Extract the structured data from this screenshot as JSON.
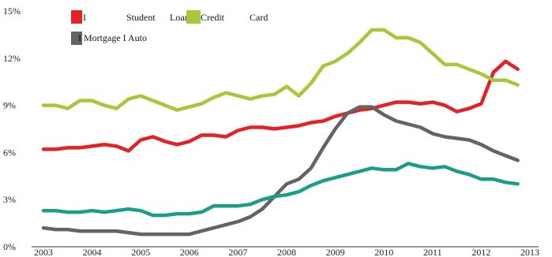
{
  "chart_data": {
    "type": "line",
    "title": "",
    "xlabel": "",
    "ylabel": "",
    "x_ticks": [
      "2003",
      "2004",
      "2005",
      "2006",
      "2007",
      "2008",
      "2009",
      "2010",
      "2011",
      "2012",
      "2013"
    ],
    "y_ticks": [
      "0%",
      "3%",
      "6%",
      "9%",
      "12%",
      "15%"
    ],
    "xlim": [
      2003,
      2013
    ],
    "ylim": [
      0,
      15
    ],
    "grid": false,
    "legend_placement": "top-left",
    "legend": {
      "row1": [
        {
          "marker": "I",
          "text": "Student",
          "color": "#e32228"
        },
        {
          "text": "Loan"
        },
        {
          "text": "Credit",
          "color": "#a7c83a"
        },
        {
          "text": "Card"
        }
      ],
      "row2": {
        "text": "I Mortgage I Auto",
        "color": "#646466"
      }
    },
    "series": [
      {
        "key": "student-loan",
        "color": "#e32228",
        "points": [
          [
            2003.0,
            6.2
          ],
          [
            2003.25,
            6.2
          ],
          [
            2003.5,
            6.3
          ],
          [
            2003.75,
            6.3
          ],
          [
            2004.0,
            6.4
          ],
          [
            2004.25,
            6.5
          ],
          [
            2004.5,
            6.4
          ],
          [
            2004.75,
            6.1
          ],
          [
            2005.0,
            6.8
          ],
          [
            2005.25,
            7.0
          ],
          [
            2005.5,
            6.7
          ],
          [
            2005.75,
            6.5
          ],
          [
            2006.0,
            6.7
          ],
          [
            2006.25,
            7.1
          ],
          [
            2006.5,
            7.1
          ],
          [
            2006.75,
            7.0
          ],
          [
            2007.0,
            7.4
          ],
          [
            2007.25,
            7.6
          ],
          [
            2007.5,
            7.6
          ],
          [
            2007.75,
            7.5
          ],
          [
            2008.0,
            7.6
          ],
          [
            2008.25,
            7.7
          ],
          [
            2008.5,
            7.9
          ],
          [
            2008.75,
            8.0
          ],
          [
            2009.0,
            8.3
          ],
          [
            2009.25,
            8.5
          ],
          [
            2009.5,
            8.7
          ],
          [
            2009.75,
            8.8
          ],
          [
            2010.0,
            9.0
          ],
          [
            2010.25,
            9.2
          ],
          [
            2010.5,
            9.2
          ],
          [
            2010.75,
            9.1
          ],
          [
            2011.0,
            9.2
          ],
          [
            2011.25,
            9.0
          ],
          [
            2011.5,
            8.6
          ],
          [
            2011.75,
            8.8
          ],
          [
            2012.0,
            9.1
          ],
          [
            2012.25,
            11.1
          ],
          [
            2012.5,
            11.8
          ],
          [
            2012.75,
            11.3
          ]
        ]
      },
      {
        "key": "credit-card",
        "color": "#a7c83a",
        "points": [
          [
            2003.0,
            9.0
          ],
          [
            2003.25,
            9.0
          ],
          [
            2003.5,
            8.8
          ],
          [
            2003.75,
            9.3
          ],
          [
            2004.0,
            9.3
          ],
          [
            2004.25,
            9.0
          ],
          [
            2004.5,
            8.8
          ],
          [
            2004.75,
            9.4
          ],
          [
            2005.0,
            9.6
          ],
          [
            2005.25,
            9.3
          ],
          [
            2005.5,
            9.0
          ],
          [
            2005.75,
            8.7
          ],
          [
            2006.0,
            8.9
          ],
          [
            2006.25,
            9.1
          ],
          [
            2006.5,
            9.5
          ],
          [
            2006.75,
            9.8
          ],
          [
            2007.0,
            9.6
          ],
          [
            2007.25,
            9.4
          ],
          [
            2007.5,
            9.6
          ],
          [
            2007.75,
            9.7
          ],
          [
            2008.0,
            10.2
          ],
          [
            2008.25,
            9.6
          ],
          [
            2008.5,
            10.4
          ],
          [
            2008.75,
            11.5
          ],
          [
            2009.0,
            11.8
          ],
          [
            2009.25,
            12.3
          ],
          [
            2009.5,
            13.0
          ],
          [
            2009.75,
            13.8
          ],
          [
            2010.0,
            13.8
          ],
          [
            2010.25,
            13.3
          ],
          [
            2010.5,
            13.3
          ],
          [
            2010.75,
            13.0
          ],
          [
            2011.0,
            12.3
          ],
          [
            2011.25,
            11.6
          ],
          [
            2011.5,
            11.6
          ],
          [
            2011.75,
            11.3
          ],
          [
            2012.0,
            11.0
          ],
          [
            2012.25,
            10.6
          ],
          [
            2012.5,
            10.6
          ],
          [
            2012.75,
            10.3
          ]
        ]
      },
      {
        "key": "mortgage",
        "color": "#646466",
        "points": [
          [
            2003.0,
            1.2
          ],
          [
            2003.25,
            1.1
          ],
          [
            2003.5,
            1.1
          ],
          [
            2003.75,
            1.0
          ],
          [
            2004.0,
            1.0
          ],
          [
            2004.25,
            1.0
          ],
          [
            2004.5,
            1.0
          ],
          [
            2004.75,
            0.9
          ],
          [
            2005.0,
            0.8
          ],
          [
            2005.25,
            0.8
          ],
          [
            2005.5,
            0.8
          ],
          [
            2005.75,
            0.8
          ],
          [
            2006.0,
            0.8
          ],
          [
            2006.25,
            1.0
          ],
          [
            2006.5,
            1.2
          ],
          [
            2006.75,
            1.4
          ],
          [
            2007.0,
            1.6
          ],
          [
            2007.25,
            1.9
          ],
          [
            2007.5,
            2.4
          ],
          [
            2007.75,
            3.2
          ],
          [
            2008.0,
            4.0
          ],
          [
            2008.25,
            4.3
          ],
          [
            2008.5,
            5.0
          ],
          [
            2008.75,
            6.3
          ],
          [
            2009.0,
            7.5
          ],
          [
            2009.25,
            8.5
          ],
          [
            2009.5,
            8.9
          ],
          [
            2009.75,
            8.9
          ],
          [
            2010.0,
            8.4
          ],
          [
            2010.25,
            8.0
          ],
          [
            2010.5,
            7.8
          ],
          [
            2010.75,
            7.6
          ],
          [
            2011.0,
            7.2
          ],
          [
            2011.25,
            7.0
          ],
          [
            2011.5,
            6.9
          ],
          [
            2011.75,
            6.8
          ],
          [
            2012.0,
            6.5
          ],
          [
            2012.25,
            6.1
          ],
          [
            2012.5,
            5.8
          ],
          [
            2012.75,
            5.5
          ]
        ]
      },
      {
        "key": "auto",
        "color": "#199e8c",
        "points": [
          [
            2003.0,
            2.3
          ],
          [
            2003.25,
            2.3
          ],
          [
            2003.5,
            2.2
          ],
          [
            2003.75,
            2.2
          ],
          [
            2004.0,
            2.3
          ],
          [
            2004.25,
            2.2
          ],
          [
            2004.5,
            2.3
          ],
          [
            2004.75,
            2.4
          ],
          [
            2005.0,
            2.3
          ],
          [
            2005.25,
            2.0
          ],
          [
            2005.5,
            2.0
          ],
          [
            2005.75,
            2.1
          ],
          [
            2006.0,
            2.1
          ],
          [
            2006.25,
            2.2
          ],
          [
            2006.5,
            2.6
          ],
          [
            2006.75,
            2.6
          ],
          [
            2007.0,
            2.6
          ],
          [
            2007.25,
            2.7
          ],
          [
            2007.5,
            3.0
          ],
          [
            2007.75,
            3.2
          ],
          [
            2008.0,
            3.3
          ],
          [
            2008.25,
            3.5
          ],
          [
            2008.5,
            3.9
          ],
          [
            2008.75,
            4.2
          ],
          [
            2009.0,
            4.4
          ],
          [
            2009.25,
            4.6
          ],
          [
            2009.5,
            4.8
          ],
          [
            2009.75,
            5.0
          ],
          [
            2010.0,
            4.9
          ],
          [
            2010.25,
            4.9
          ],
          [
            2010.5,
            5.3
          ],
          [
            2010.75,
            5.1
          ],
          [
            2011.0,
            5.0
          ],
          [
            2011.25,
            5.1
          ],
          [
            2011.5,
            4.8
          ],
          [
            2011.75,
            4.6
          ],
          [
            2012.0,
            4.3
          ],
          [
            2012.25,
            4.3
          ],
          [
            2012.5,
            4.1
          ],
          [
            2012.75,
            4.0
          ]
        ]
      }
    ]
  }
}
